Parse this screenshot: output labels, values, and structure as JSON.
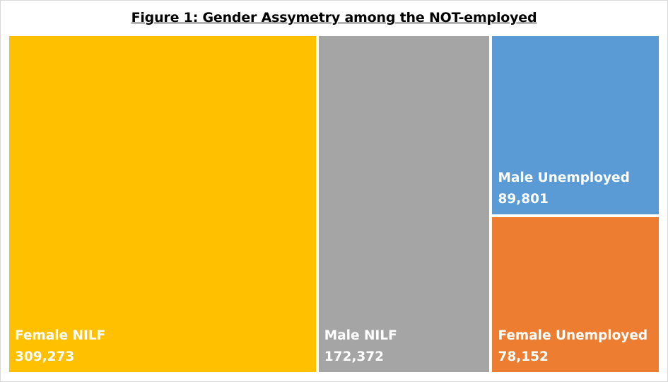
{
  "chart_data": {
    "type": "treemap",
    "title": "Figure 1: Gender Assymetry among the NOT-employed",
    "tiles": [
      {
        "name": "Female NILF",
        "value": 309273,
        "value_label": "309,273",
        "color": "#FFC000"
      },
      {
        "name": "Male NILF",
        "value": 172372,
        "value_label": "172,372",
        "color": "#A5A5A5"
      },
      {
        "name": "Male Unemployed",
        "value": 89801,
        "value_label": "89,801",
        "color": "#5B9BD5"
      },
      {
        "name": "Female Unemployed",
        "value": 78152,
        "value_label": "78,152",
        "color": "#ED7D31"
      }
    ]
  }
}
